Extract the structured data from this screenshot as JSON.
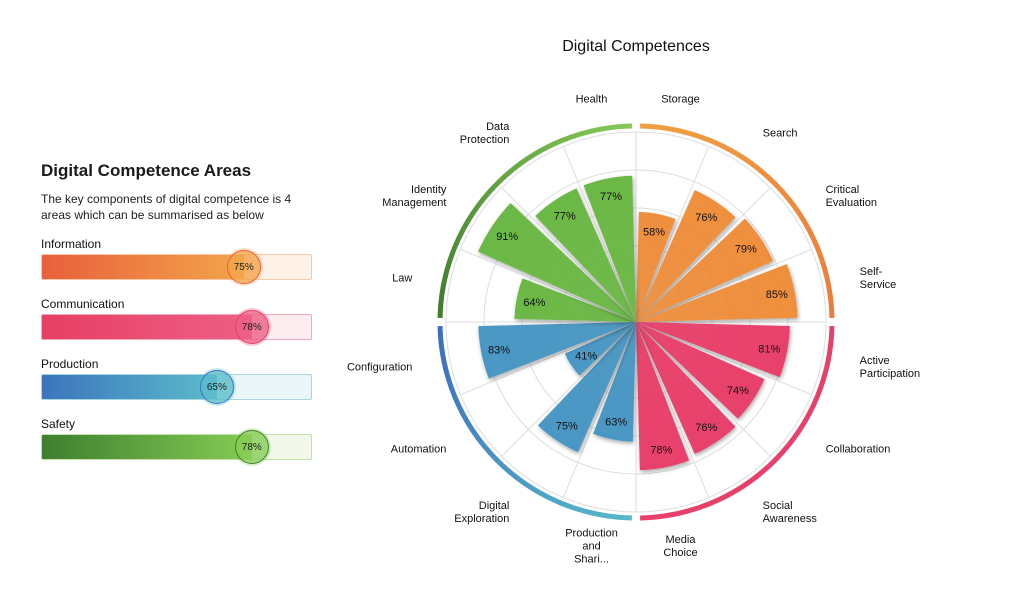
{
  "areas_panel": {
    "title": "Digital Competence Areas",
    "description": "The key components of digital competence is 4 areas which can be summarised as below",
    "areas": [
      {
        "label": "Information",
        "value": 75,
        "value_label": "75%",
        "color_start": "#e8603c",
        "color_end": "#f2a54a",
        "track": "#fdf1e8",
        "border": "#f5c9a8"
      },
      {
        "label": "Communication",
        "value": 78,
        "value_label": "78%",
        "color_start": "#e83e64",
        "color_end": "#ee5f86",
        "track": "#fdecf0",
        "border": "#f2a9bb"
      },
      {
        "label": "Production",
        "value": 65,
        "value_label": "65%",
        "color_start": "#3b74bd",
        "color_end": "#5bbccc",
        "track": "#eaf6f8",
        "border": "#a9d5df"
      },
      {
        "label": "Safety",
        "value": 78,
        "value_label": "78%",
        "color_start": "#3e7e2f",
        "color_end": "#86cc55",
        "track": "#f1f8ea",
        "border": "#c3e2a7"
      }
    ]
  },
  "chart_data": {
    "type": "polar-bar",
    "title": "Digital Competences",
    "rlim": [
      0,
      100
    ],
    "grid": true,
    "series_colors": {
      "Information": "#ef8f3e",
      "Communication": "#e8406b",
      "Production": "#4a97c4",
      "Safety": "#6cb846"
    },
    "categories": [
      {
        "name": "Storage",
        "lines": [
          "Storage"
        ],
        "value": 58,
        "label": "58%",
        "area": "Information"
      },
      {
        "name": "Search",
        "lines": [
          "Search"
        ],
        "value": 76,
        "label": "76%",
        "area": "Information"
      },
      {
        "name": "Critical Evaluation",
        "lines": [
          "Critical",
          "Evaluation"
        ],
        "value": 79,
        "label": "79%",
        "area": "Information"
      },
      {
        "name": "Self-Service",
        "lines": [
          "Self-",
          "Service"
        ],
        "value": 85,
        "label": "85%",
        "area": "Information"
      },
      {
        "name": "Active Participation",
        "lines": [
          "Active",
          "Participation"
        ],
        "value": 81,
        "label": "81%",
        "area": "Communication"
      },
      {
        "name": "Collaboration",
        "lines": [
          "Collaboration"
        ],
        "value": 74,
        "label": "74%",
        "area": "Communication"
      },
      {
        "name": "Social Awareness",
        "lines": [
          "Social",
          "Awareness"
        ],
        "value": 76,
        "label": "76%",
        "area": "Communication"
      },
      {
        "name": "Media Choice",
        "lines": [
          "Media",
          "Choice"
        ],
        "value": 78,
        "label": "78%",
        "area": "Communication"
      },
      {
        "name": "Production and Shari...",
        "lines": [
          "Production",
          "and",
          "Shari..."
        ],
        "value": 63,
        "label": "63%",
        "area": "Production"
      },
      {
        "name": "Digital Exploration",
        "lines": [
          "Digital",
          "Exploration"
        ],
        "value": 75,
        "label": "75%",
        "area": "Production"
      },
      {
        "name": "Automation",
        "lines": [
          "Automation"
        ],
        "value": 41,
        "label": "41%",
        "area": "Production"
      },
      {
        "name": "Configuration",
        "lines": [
          "Configuration"
        ],
        "value": 83,
        "label": "83%",
        "area": "Production"
      },
      {
        "name": "Law",
        "lines": [
          "Law"
        ],
        "value": 64,
        "label": "64%",
        "area": "Safety"
      },
      {
        "name": "Identity Management",
        "lines": [
          "Identity",
          "Management"
        ],
        "value": 91,
        "label": "91%",
        "area": "Safety"
      },
      {
        "name": "Data Protection",
        "lines": [
          "Data",
          "Protection"
        ],
        "value": 77,
        "label": "77%",
        "area": "Safety"
      },
      {
        "name": "Health",
        "lines": [
          "Health"
        ],
        "value": 77,
        "label": "77%",
        "area": "Safety"
      }
    ],
    "ring_arcs": [
      {
        "area": "Information",
        "color_start": "#f0a040",
        "color_end": "#ee7b3a"
      },
      {
        "area": "Communication",
        "color_start": "#e8406b",
        "color_end": "#e8406b"
      },
      {
        "area": "Production",
        "color_start": "#56b8cb",
        "color_end": "#3b6fba"
      },
      {
        "area": "Safety",
        "color_start": "#3f7d2e",
        "color_end": "#86c857"
      }
    ]
  }
}
